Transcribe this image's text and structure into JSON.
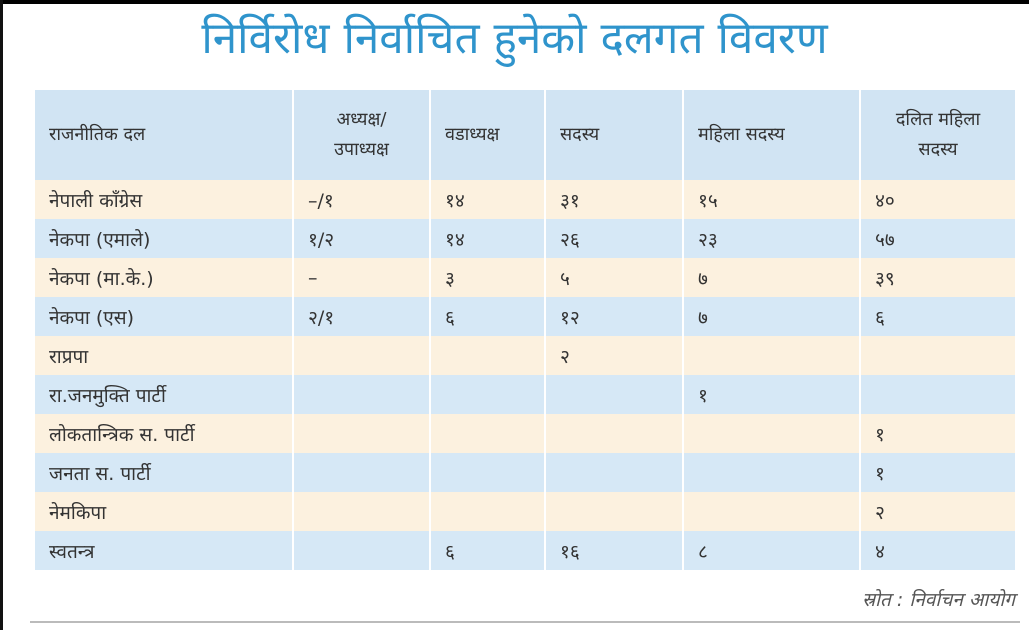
{
  "title": "निर्विरोध निर्वाचित हुनेको दलगत विवरण",
  "table": {
    "headers": [
      "राजनीतिक दल",
      "अध्यक्ष/ उपाध्यक्ष",
      "वडाध्यक्ष",
      "सदस्य",
      "महिला सदस्य",
      "दलित महिला सदस्य"
    ],
    "rows": [
      [
        "नेपाली काँग्रेस",
        "–/१",
        "१४",
        "३१",
        "१५",
        "४०"
      ],
      [
        "नेकपा (एमाले)",
        "१/२",
        "१४",
        "२६",
        "२३",
        "५७"
      ],
      [
        "नेकपा (मा.के.)",
        "–",
        "३",
        "५",
        "७",
        "३९"
      ],
      [
        "नेकपा (एस)",
        "२/१",
        "६",
        "१२",
        "७",
        "६"
      ],
      [
        "राप्रपा",
        "",
        "",
        "२",
        "",
        ""
      ],
      [
        "रा.जनमुक्ति पार्टी",
        "",
        "",
        "",
        "१",
        ""
      ],
      [
        "लोकतान्त्रिक स. पार्टी",
        "",
        "",
        "",
        "",
        "१"
      ],
      [
        "जनता स. पार्टी",
        "",
        "",
        "",
        "",
        "१"
      ],
      [
        "नेमकिपा",
        "",
        "",
        "",
        "",
        "२"
      ],
      [
        "स्वतन्त्र",
        "",
        "६",
        "१६",
        "८",
        "४"
      ]
    ]
  },
  "source": "स्रोत : निर्वाचन आयोग",
  "colors": {
    "title": "#2f94cc",
    "header_bg": "#d1e4f3",
    "row_cream": "#fcf1df",
    "row_blue": "#d6e8f6"
  }
}
